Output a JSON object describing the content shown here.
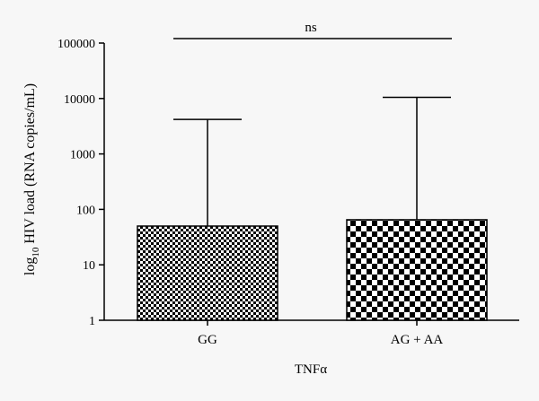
{
  "chart_data": {
    "type": "bar",
    "scale": "log",
    "categories": [
      "GG",
      "AG + AA"
    ],
    "values": [
      50,
      65
    ],
    "error_upper": [
      4200,
      10500
    ],
    "patterns": [
      "fine-checker",
      "coarse-checker"
    ],
    "ylim": [
      1,
      100000
    ],
    "yticks": [
      "1",
      "10",
      "100",
      "1000",
      "10000",
      "100000"
    ],
    "ylabel_prefix": "log",
    "ylabel_subscript": "10",
    "ylabel_rest": " HIV load (RNA copies/mL)",
    "xlabel": "TNFα",
    "annotation": "ns",
    "grid": false,
    "colors": {
      "bar_fill": "#ffffff",
      "bar_pattern": "#000000",
      "axis": "#000000",
      "background": "#f7f7f7"
    }
  }
}
